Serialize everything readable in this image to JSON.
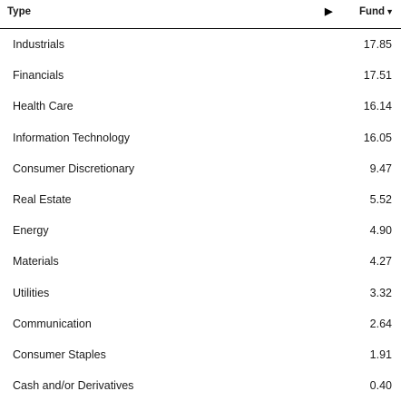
{
  "table": {
    "header": {
      "type_label": "Type",
      "expand_glyph": "▶",
      "fund_label": "Fund",
      "sort_glyph": "▼"
    },
    "rows": [
      {
        "name": "Industrials",
        "value": "17.85"
      },
      {
        "name": "Financials",
        "value": "17.51"
      },
      {
        "name": "Health Care",
        "value": "16.14"
      },
      {
        "name": "Information Technology",
        "value": "16.05"
      },
      {
        "name": "Consumer Discretionary",
        "value": "9.47"
      },
      {
        "name": "Real Estate",
        "value": "5.52"
      },
      {
        "name": "Energy",
        "value": "4.90"
      },
      {
        "name": "Materials",
        "value": "4.27"
      },
      {
        "name": "Utilities",
        "value": "3.32"
      },
      {
        "name": "Communication",
        "value": "2.64"
      },
      {
        "name": "Consumer Staples",
        "value": "1.91"
      },
      {
        "name": "Cash and/or Derivatives",
        "value": "0.40"
      }
    ]
  }
}
